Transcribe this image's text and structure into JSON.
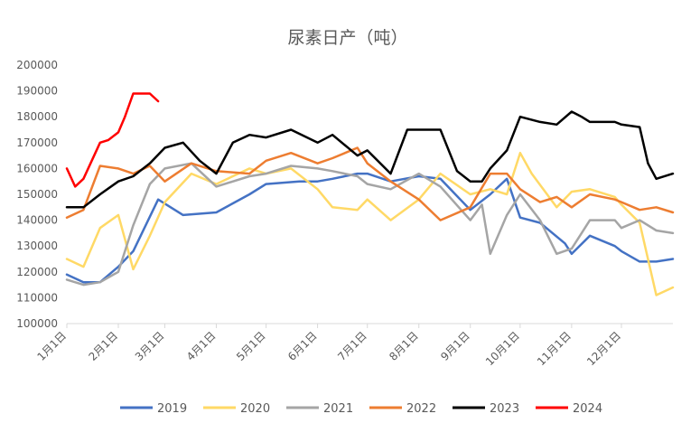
{
  "chart_data": {
    "type": "line",
    "title": "尿素日产（吨）",
    "ylim": [
      100000,
      200000
    ],
    "yticks": [
      100000,
      110000,
      120000,
      130000,
      140000,
      150000,
      160000,
      170000,
      180000,
      190000,
      200000
    ],
    "x_tick_labels": [
      "1月1日",
      "2月1日",
      "3月1日",
      "4月1日",
      "5月1日",
      "6月1日",
      "7月1日",
      "8月1日",
      "9月1日",
      "10月1日",
      "11月1日",
      "12月1日"
    ],
    "x_tick_days": [
      0,
      31,
      59,
      90,
      120,
      151,
      181,
      212,
      243,
      273,
      304,
      334
    ],
    "x_domain": [
      0,
      365
    ],
    "grid": false,
    "legend_position": "bottom",
    "series": [
      {
        "name": "2019",
        "color": "#4472C4",
        "x": [
          0,
          10,
          20,
          31,
          40,
          55,
          70,
          90,
          110,
          120,
          140,
          151,
          160,
          175,
          181,
          195,
          212,
          225,
          243,
          255,
          265,
          273,
          285,
          300,
          304,
          315,
          330,
          334,
          345,
          355,
          365
        ],
        "y": [
          119000,
          116000,
          116000,
          122000,
          128000,
          148000,
          142000,
          143000,
          150000,
          154000,
          155000,
          155000,
          156000,
          158000,
          158000,
          155000,
          157000,
          156000,
          144000,
          150000,
          156000,
          141000,
          139000,
          131000,
          127000,
          134000,
          130000,
          128000,
          124000,
          124000,
          125000
        ]
      },
      {
        "name": "2020",
        "color": "#FFD966",
        "x": [
          0,
          10,
          20,
          31,
          40,
          50,
          59,
          75,
          90,
          110,
          120,
          135,
          151,
          160,
          175,
          181,
          195,
          212,
          225,
          243,
          255,
          265,
          273,
          280,
          295,
          304,
          315,
          330,
          334,
          345,
          355,
          365
        ],
        "y": [
          125000,
          122000,
          137000,
          142000,
          121000,
          134000,
          147000,
          158000,
          154000,
          160000,
          158000,
          160000,
          152000,
          145000,
          144000,
          148000,
          140000,
          148000,
          158000,
          150000,
          152000,
          150000,
          166000,
          158000,
          145000,
          151000,
          152000,
          149000,
          146000,
          139000,
          111000,
          114000
        ]
      },
      {
        "name": "2021",
        "color": "#A5A5A5",
        "x": [
          0,
          10,
          20,
          31,
          40,
          50,
          59,
          75,
          90,
          110,
          120,
          135,
          151,
          160,
          175,
          181,
          195,
          212,
          225,
          243,
          250,
          255,
          265,
          273,
          285,
          295,
          304,
          315,
          330,
          334,
          345,
          355,
          365
        ],
        "y": [
          117000,
          115000,
          116000,
          120000,
          138000,
          154000,
          160000,
          162000,
          153000,
          157000,
          158000,
          161000,
          160000,
          159000,
          157000,
          154000,
          152000,
          158000,
          153000,
          140000,
          146000,
          127000,
          142000,
          150000,
          140000,
          127000,
          129000,
          140000,
          140000,
          137000,
          140000,
          136000,
          135000
        ]
      },
      {
        "name": "2022",
        "color": "#ED7D31",
        "x": [
          0,
          10,
          20,
          31,
          40,
          50,
          59,
          75,
          90,
          110,
          120,
          135,
          151,
          160,
          175,
          181,
          195,
          212,
          225,
          243,
          255,
          265,
          273,
          285,
          295,
          304,
          315,
          330,
          334,
          345,
          355,
          365
        ],
        "y": [
          141000,
          144000,
          161000,
          160000,
          158000,
          161000,
          155000,
          162000,
          159000,
          158000,
          163000,
          166000,
          162000,
          164000,
          168000,
          162000,
          155000,
          148000,
          140000,
          145000,
          158000,
          158000,
          152000,
          147000,
          149000,
          145000,
          150000,
          148000,
          147000,
          144000,
          145000,
          143000
        ]
      },
      {
        "name": "2023",
        "color": "#000000",
        "x": [
          0,
          10,
          20,
          31,
          40,
          50,
          59,
          70,
          80,
          90,
          100,
          110,
          120,
          135,
          151,
          160,
          175,
          181,
          195,
          205,
          212,
          225,
          235,
          243,
          250,
          255,
          265,
          273,
          285,
          295,
          304,
          310,
          315,
          330,
          334,
          345,
          350,
          355,
          365
        ],
        "y": [
          145000,
          145000,
          150000,
          155000,
          157000,
          162000,
          168000,
          170000,
          163000,
          158000,
          170000,
          173000,
          172000,
          175000,
          170000,
          173000,
          165000,
          167000,
          158000,
          175000,
          175000,
          175000,
          159000,
          155000,
          155000,
          160000,
          167000,
          180000,
          178000,
          177000,
          182000,
          180000,
          178000,
          178000,
          177000,
          176000,
          162000,
          156000,
          158000
        ]
      },
      {
        "name": "2024",
        "color": "#FF0000",
        "x": [
          0,
          5,
          10,
          15,
          20,
          25,
          31,
          35,
          40,
          45,
          50,
          55
        ],
        "y": [
          160000,
          153000,
          156000,
          163000,
          170000,
          171000,
          174000,
          180000,
          189000,
          189000,
          189000,
          186000
        ]
      }
    ]
  }
}
